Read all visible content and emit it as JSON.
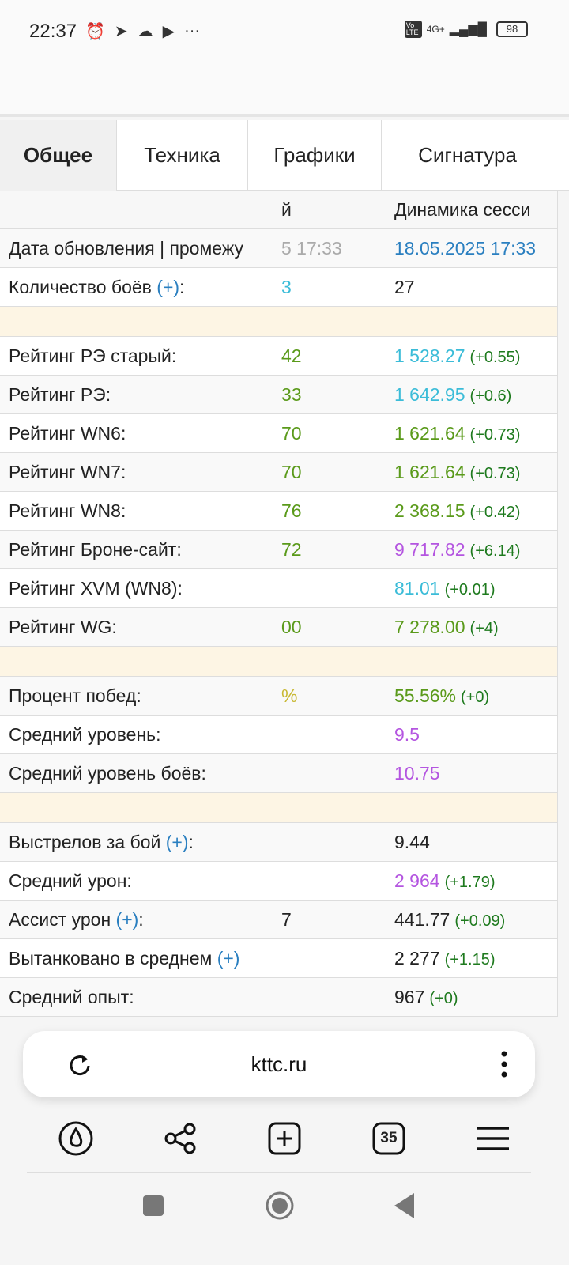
{
  "status_bar": {
    "time": "22:37",
    "network": "4G+",
    "volte": "Vo LTE",
    "battery": "98"
  },
  "tabs": [
    {
      "label": "Общее",
      "active": true
    },
    {
      "label": "Техника"
    },
    {
      "label": "Графики"
    },
    {
      "label": "Сигнатура"
    }
  ],
  "table": {
    "header": {
      "mid": "й",
      "value": "Динамика сесси"
    },
    "rows": [
      {
        "label": "Дата обновления | промежу",
        "mid": "5 17:33",
        "mid_color": "#aaaaaa",
        "value": "18.05.2025 17:33",
        "value_color": "#2a7fc0",
        "delta": ""
      },
      {
        "label": "Количество боёв ",
        "plus": "(+)",
        "suffix": ":",
        "mid": "3",
        "mid_color": "#3bbcd8",
        "value": "27",
        "value_color": "#222222",
        "delta": ""
      },
      {
        "spacer": true
      },
      {
        "label": "Рейтинг РЭ старый:",
        "mid": "42",
        "mid_color": "#5a9a1a",
        "value": "1 528.27",
        "value_color": "#3bbcd8",
        "delta": "(+0.55)"
      },
      {
        "label": "Рейтинг РЭ:",
        "mid": "33",
        "mid_color": "#5a9a1a",
        "value": "1 642.95",
        "value_color": "#3bbcd8",
        "delta": "(+0.6)"
      },
      {
        "label": "Рейтинг WN6:",
        "mid": "70",
        "mid_color": "#5a9a1a",
        "value": "1 621.64",
        "value_color": "#5a9a1a",
        "delta": "(+0.73)"
      },
      {
        "label": "Рейтинг WN7:",
        "mid": "70",
        "mid_color": "#5a9a1a",
        "value": "1 621.64",
        "value_color": "#5a9a1a",
        "delta": "(+0.73)"
      },
      {
        "label": "Рейтинг WN8:",
        "mid": "76",
        "mid_color": "#5a9a1a",
        "value": "2 368.15",
        "value_color": "#5a9a1a",
        "delta": "(+0.42)"
      },
      {
        "label": "Рейтинг Броне-сайт:",
        "mid": "72",
        "mid_color": "#5a9a1a",
        "value": "9 717.82",
        "value_color": "#b455e0",
        "delta": "(+6.14)"
      },
      {
        "label": "Рейтинг XVM (WN8):",
        "mid": "",
        "mid_color": "#5a9a1a",
        "value": "81.01",
        "value_color": "#3bbcd8",
        "delta": "(+0.01)"
      },
      {
        "label": "Рейтинг WG:",
        "mid": "00",
        "mid_color": "#5a9a1a",
        "value": "7 278.00",
        "value_color": "#5a9a1a",
        "delta": "(+4)"
      },
      {
        "spacer": true
      },
      {
        "label": "Процент побед:",
        "mid": "%",
        "mid_color": "#c8b832",
        "value": "55.56%",
        "value_color": "#5a9a1a",
        "delta": "(+0)"
      },
      {
        "label": "Средний уровень:",
        "mid": "",
        "mid_color": "#222222",
        "value": "9.5",
        "value_color": "#b455e0",
        "delta": ""
      },
      {
        "label": "Средний уровень боёв:",
        "mid": "",
        "mid_color": "#222222",
        "value": "10.75",
        "value_color": "#b455e0",
        "delta": ""
      },
      {
        "spacer": true
      },
      {
        "label": "Выстрелов за бой ",
        "plus": "(+)",
        "suffix": ":",
        "mid": "",
        "mid_color": "#222222",
        "value": "9.44",
        "value_color": "#222222",
        "delta": ""
      },
      {
        "label": "Средний урон:",
        "mid": "",
        "mid_color": "#222222",
        "value": "2 964",
        "value_color": "#b455e0",
        "delta": "(+1.79)"
      },
      {
        "label": "Ассист урон ",
        "plus": "(+)",
        "suffix": ":",
        "mid": "7",
        "mid_color": "#222222",
        "value": "441.77",
        "value_color": "#222222",
        "delta": "(+0.09)"
      },
      {
        "label": "Вытанковано в среднем ",
        "plus": "(+)",
        "suffix": "",
        "mid": "",
        "mid_color": "#222222",
        "value": "2 277",
        "value_color": "#222222",
        "delta": "(+1.15)"
      },
      {
        "label": "Средний опыт:",
        "mid": "",
        "mid_color": "#222222",
        "value": "967",
        "value_color": "#222222",
        "delta": "(+0)"
      }
    ]
  },
  "browser": {
    "url": "kttc.ru",
    "tab_count": "35"
  }
}
